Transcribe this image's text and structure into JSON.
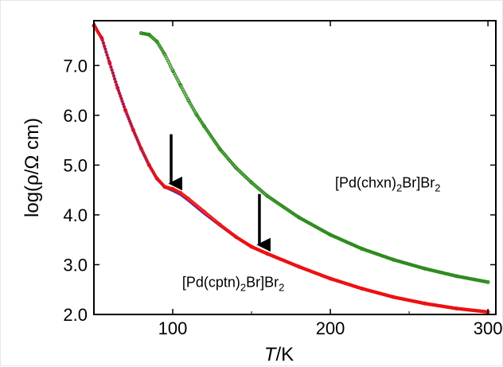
{
  "chart_data": {
    "type": "scatter",
    "xlabel_italic": "T",
    "xlabel_rest": "/K",
    "ylabel": "log(ρ/Ω cm)",
    "xlim": [
      50,
      305
    ],
    "ylim": [
      2.0,
      7.9
    ],
    "x_ticks": [
      100,
      200,
      300
    ],
    "x_tick_labels": [
      "100",
      "200",
      "300"
    ],
    "y_ticks": [
      2.0,
      3.0,
      4.0,
      5.0,
      6.0,
      7.0
    ],
    "y_tick_labels": [
      "2.0",
      "3.0",
      "4.0",
      "5.0",
      "6.0",
      "7.0"
    ],
    "grid": false,
    "series": [
      {
        "key": "cptn_fit",
        "color": "#3333bb",
        "style": "line",
        "x": [
          50,
          55,
          60,
          65,
          70,
          75,
          80,
          85,
          90,
          95,
          100,
          105,
          110,
          120,
          130,
          140,
          150,
          160,
          180,
          200,
          220,
          240,
          260,
          280,
          300
        ],
        "y": [
          7.85,
          7.55,
          7.05,
          6.55,
          6.1,
          5.7,
          5.32,
          5.0,
          4.72,
          4.55,
          4.48,
          4.4,
          4.28,
          4.02,
          3.78,
          3.55,
          3.36,
          3.22,
          2.96,
          2.72,
          2.52,
          2.35,
          2.22,
          2.12,
          2.05
        ]
      },
      {
        "key": "cptn_data",
        "color": "#ee1111",
        "style": "markers",
        "x": [
          50,
          55,
          60,
          65,
          70,
          75,
          80,
          85,
          90,
          95,
          100,
          105,
          110,
          120,
          130,
          140,
          150,
          160,
          180,
          200,
          220,
          240,
          260,
          280,
          300
        ],
        "y": [
          7.8,
          7.55,
          7.05,
          6.55,
          6.1,
          5.7,
          5.33,
          5.0,
          4.73,
          4.56,
          4.52,
          4.44,
          4.32,
          4.06,
          3.8,
          3.56,
          3.36,
          3.22,
          2.96,
          2.72,
          2.52,
          2.35,
          2.22,
          2.12,
          2.05
        ]
      },
      {
        "key": "chxn_data",
        "color": "#2e8b1e",
        "style": "markers",
        "x": [
          80,
          85,
          90,
          95,
          100,
          105,
          110,
          115,
          120,
          130,
          140,
          150,
          160,
          180,
          200,
          220,
          240,
          260,
          280,
          300
        ],
        "y": [
          7.65,
          7.62,
          7.48,
          7.22,
          6.9,
          6.6,
          6.3,
          6.02,
          5.78,
          5.32,
          4.95,
          4.65,
          4.38,
          3.95,
          3.6,
          3.32,
          3.1,
          2.92,
          2.77,
          2.65
        ]
      }
    ],
    "annotations": [
      {
        "key": "chxn_label",
        "x": 203,
        "y": 4.55,
        "base": "[Pd(chxn)",
        "sub": "2",
        "mid": "Br]Br",
        "sub2": "2"
      },
      {
        "key": "cptn_label",
        "x": 106,
        "y": 2.55,
        "base": "[Pd(cptn)",
        "sub": "2",
        "mid": "Br]Br",
        "sub2": "2"
      }
    ],
    "arrows": [
      {
        "key": "arrow_100",
        "x": 99,
        "y_from": 5.62,
        "y_to": 4.63
      },
      {
        "key": "arrow_155",
        "x": 155,
        "y_from": 4.42,
        "y_to": 3.4
      }
    ]
  }
}
